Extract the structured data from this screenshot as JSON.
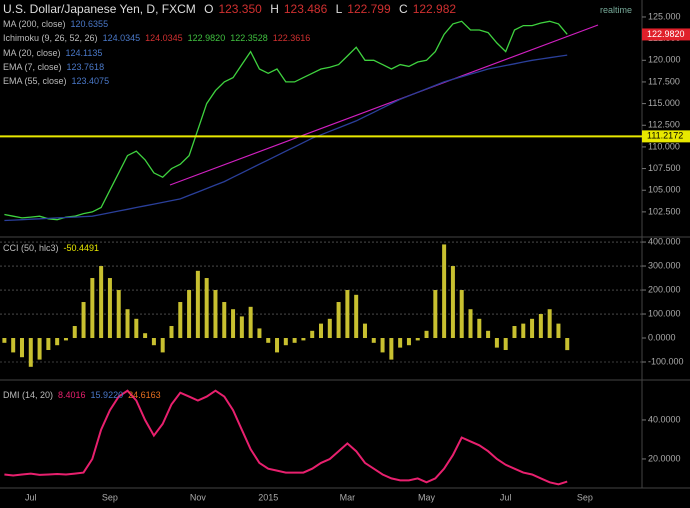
{
  "header": {
    "symbol": "U.S. Dollar/Japanese Yen, D, FXCM",
    "o": "O",
    "o_val": "123.350",
    "h": "H",
    "h_val": "123.486",
    "l": "L",
    "l_val": "122.799",
    "c": "C",
    "c_val": "122.982",
    "realtime": "realtime"
  },
  "indicators": [
    {
      "label": "MA (200, close)",
      "values": [
        "120.6355"
      ]
    },
    {
      "label": "Ichimoku (9, 26, 52, 26)",
      "values": [
        "124.0345",
        "124.0345",
        "122.9820",
        "122.3528",
        "122.3616"
      ]
    },
    {
      "label": "MA (20, close)",
      "values": [
        "124.1135"
      ]
    },
    {
      "label": "EMA (7, close)",
      "values": [
        "123.7618"
      ]
    },
    {
      "label": "EMA (55, close)",
      "values": [
        "123.4075"
      ]
    }
  ],
  "chart_data": [
    {
      "type": "line",
      "ylim": [
        99.6,
        126.96
      ],
      "yticks": [
        {
          "value": 102.5,
          "label": "102.500"
        },
        {
          "value": 105,
          "label": "105.000"
        },
        {
          "value": 107.5,
          "label": "107.500"
        },
        {
          "value": 110,
          "label": "110.000"
        },
        {
          "value": 112.5,
          "label": "112.500"
        },
        {
          "value": 115,
          "label": "115.000"
        },
        {
          "value": 117.5,
          "label": "117.500"
        },
        {
          "value": 120,
          "label": "120.000"
        },
        {
          "value": 122.5,
          "label": "122.500"
        },
        {
          "value": 125,
          "label": "125.000"
        }
      ],
      "hline": {
        "value": 111.2172,
        "label": "111.2172",
        "color": "#e8e800"
      },
      "last_price": {
        "value": 122.982,
        "label": "122.9820",
        "color": "#e0202a"
      },
      "series": [
        {
          "color": "#3fd23f",
          "values": [
            102.2,
            102.0,
            101.8,
            101.9,
            102.0,
            101.7,
            101.6,
            101.9,
            102.0,
            102.3,
            102.5,
            103,
            105,
            107,
            109,
            109.5,
            108.5,
            107,
            106.5,
            107.5,
            108,
            109,
            112,
            115,
            116.5,
            117.5,
            118,
            119.5,
            121,
            119,
            118.5,
            119,
            117.5,
            117.5,
            118,
            118.5,
            119,
            119.2,
            119.5,
            120.5,
            121.5,
            120,
            120,
            119.5,
            119,
            119.5,
            119.3,
            119.8,
            120,
            121,
            123,
            124.2,
            124.5,
            123.5,
            123.5,
            123.2,
            122,
            121,
            123.5,
            124,
            124,
            124.3,
            124.5,
            124.2,
            123.0,
            null,
            null,
            null,
            null,
            null,
            null,
            null,
            null
          ]
        },
        {
          "color": "#2a3f9a",
          "values": [
            101.5,
            101.55,
            101.6,
            101.65,
            101.7,
            101.75,
            101.8,
            101.85,
            101.9,
            101.95,
            102.0,
            102.2,
            102.4,
            102.6,
            102.8,
            103.0,
            103.2,
            103.4,
            103.6,
            103.8,
            104.0,
            104.4,
            104.8,
            105.2,
            105.6,
            106.0,
            106.5,
            107.0,
            107.5,
            108.0,
            108.5,
            109.0,
            109.5,
            110.0,
            110.5,
            111.0,
            111.4,
            111.8,
            112.2,
            112.6,
            113.0,
            113.5,
            114.0,
            114.5,
            115.0,
            115.5,
            115.9,
            116.3,
            116.7,
            117.1,
            117.5,
            117.8,
            118.1,
            118.4,
            118.7,
            119.0,
            119.2,
            119.4,
            119.6,
            119.8,
            120.0,
            120.15,
            120.3,
            120.45,
            120.6,
            null,
            null,
            null,
            null,
            null,
            null,
            null,
            null
          ]
        }
      ]
    },
    {
      "type": "bar",
      "title": "CCI (50, hlc3)",
      "value_label": "-50.4491",
      "color": "#c8c030",
      "ylim": [
        -175,
        421
      ],
      "yticks": [
        {
          "value": -100,
          "label": "-100.000"
        },
        {
          "value": 0,
          "label": "0.0000"
        },
        {
          "value": 100,
          "label": "100.000"
        },
        {
          "value": 200,
          "label": "200.000"
        },
        {
          "value": 300,
          "label": "300.000"
        },
        {
          "value": 400,
          "label": "400.000"
        }
      ],
      "values": [
        -20,
        -60,
        -80,
        -120,
        -90,
        -50,
        -30,
        -10,
        50,
        150,
        250,
        300,
        250,
        200,
        120,
        80,
        20,
        -30,
        -60,
        50,
        150,
        200,
        280,
        250,
        200,
        150,
        120,
        90,
        130,
        40,
        -20,
        -60,
        -30,
        -20,
        -10,
        30,
        60,
        80,
        150,
        200,
        180,
        60,
        -20,
        -60,
        -90,
        -40,
        -30,
        -10,
        30,
        200,
        390,
        300,
        200,
        120,
        80,
        30,
        -40,
        -50,
        50,
        60,
        80,
        100,
        120,
        60,
        -50.4491,
        null,
        null,
        null,
        null,
        null,
        null,
        null,
        null
      ]
    },
    {
      "type": "line",
      "title": "DMI (14, 20)",
      "value_labels": [
        "8.4016",
        "15.9220",
        "24.6163"
      ],
      "ylim": [
        5.1,
        60.5
      ],
      "yticks": [
        {
          "value": 20,
          "label": "20.0000"
        },
        {
          "value": 40,
          "label": "40.0000"
        }
      ],
      "categories": [
        null,
        null,
        null,
        "Jul",
        null,
        null,
        null,
        null,
        null,
        null,
        null,
        null,
        "Sep",
        null,
        null,
        null,
        null,
        null,
        null,
        null,
        null,
        null,
        "Nov",
        null,
        null,
        null,
        null,
        null,
        null,
        null,
        "2015",
        null,
        null,
        null,
        null,
        null,
        null,
        null,
        null,
        "Mar",
        null,
        null,
        null,
        null,
        null,
        null,
        null,
        null,
        "May",
        null,
        null,
        null,
        null,
        null,
        null,
        null,
        null,
        "Jul",
        null,
        null,
        null,
        null,
        null,
        null,
        null,
        null,
        "Sep",
        null,
        null,
        null,
        null,
        null,
        null
      ],
      "series": [
        {
          "color": "#e8206e",
          "values": [
            12,
            11.5,
            12,
            12.5,
            11.8,
            12,
            12.3,
            12,
            12.5,
            13,
            20,
            35,
            45,
            52,
            55,
            50,
            40,
            32,
            38,
            48,
            54,
            52,
            50,
            52,
            55,
            52,
            45,
            35,
            25,
            18,
            15,
            14,
            13,
            13,
            13,
            15,
            18,
            20,
            24,
            28,
            24,
            18,
            15,
            12,
            10,
            9,
            9,
            10,
            8,
            10,
            15,
            22,
            31,
            29,
            27,
            24,
            20,
            17,
            15,
            13,
            12,
            10,
            8,
            7,
            8.4016,
            null,
            null,
            null,
            null,
            null,
            null,
            null,
            null
          ]
        }
      ]
    }
  ]
}
